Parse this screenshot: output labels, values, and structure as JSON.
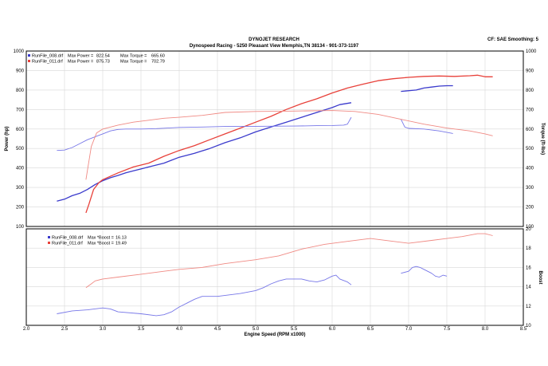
{
  "header": {
    "title": "DYNOJET RESEARCH",
    "subtitle": "Dynospeed  Racing - 5250 Pleasant View Memphis,TN 38134 - 901-373-1197",
    "cf_note": "CF: SAE  Smoothing: 5"
  },
  "chart_data": [
    {
      "type": "line",
      "panel": "power-torque",
      "xlabel": "Engine Speed (RPM x1000)",
      "ylabel_left": "Power (hp)",
      "ylabel_right": "Torque (ft-lbs)",
      "xlim": [
        2.0,
        8.5
      ],
      "ylim": [
        100,
        1000
      ],
      "y_ticks": [
        100,
        200,
        300,
        400,
        500,
        600,
        700,
        800,
        900,
        1000
      ],
      "x_ticks": [
        "2.0",
        "2.5",
        "3.0",
        "3.5",
        "4.0",
        "4.5",
        "5.0",
        "5.5",
        "6.0",
        "6.5",
        "7.0",
        "7.5",
        "8.0",
        "8.5"
      ],
      "grid": true,
      "legend_position": "top-left",
      "legend": [
        {
          "file": "RunFile_008.drf",
          "max_power_label": "Max Power =",
          "max_power": "822.54",
          "max_torque_label": "Max Torque =",
          "max_torque": "665.60",
          "color": "#3a3acc"
        },
        {
          "file": "RunFile_011.drf",
          "max_power_label": "Max Power =",
          "max_power": "875.73",
          "max_torque_label": "Max Torque =",
          "max_torque": "702.79",
          "color": "#e8413a"
        }
      ],
      "series": [
        {
          "role": "RunFile_008 power",
          "color": "#3a3acc",
          "width": 1.3,
          "points": [
            [
              2.4,
              230
            ],
            [
              2.5,
              240
            ],
            [
              2.6,
              258
            ],
            [
              2.7,
              270
            ],
            [
              2.8,
              290
            ],
            [
              2.9,
              315
            ],
            [
              3.0,
              335
            ],
            [
              3.1,
              350
            ],
            [
              3.2,
              362
            ],
            [
              3.3,
              375
            ],
            [
              3.4,
              385
            ],
            [
              3.5,
              395
            ],
            [
              3.6,
              405
            ],
            [
              3.7,
              415
            ],
            [
              3.8,
              425
            ],
            [
              3.9,
              440
            ],
            [
              4.0,
              455
            ],
            [
              4.2,
              475
            ],
            [
              4.4,
              500
            ],
            [
              4.6,
              530
            ],
            [
              4.8,
              555
            ],
            [
              5.0,
              585
            ],
            [
              5.2,
              610
            ],
            [
              5.4,
              635
            ],
            [
              5.6,
              660
            ],
            [
              5.8,
              685
            ],
            [
              6.0,
              710
            ],
            [
              6.1,
              725
            ],
            [
              6.25,
              735
            ]
          ]
        },
        {
          "role": "RunFile_008 power",
          "color": "#3a3acc",
          "width": 1.3,
          "points": [
            [
              6.9,
              793
            ],
            [
              7.1,
              800
            ],
            [
              7.2,
              810
            ],
            [
              7.3,
              815
            ],
            [
              7.4,
              820
            ],
            [
              7.5,
              822
            ],
            [
              7.58,
              822
            ]
          ]
        },
        {
          "role": "RunFile_011 power",
          "color": "#e8413a",
          "width": 1.3,
          "points": [
            [
              2.78,
              170
            ],
            [
              2.82,
              215
            ],
            [
              2.88,
              290
            ],
            [
              2.95,
              325
            ],
            [
              3.0,
              340
            ],
            [
              3.2,
              375
            ],
            [
              3.4,
              405
            ],
            [
              3.6,
              425
            ],
            [
              3.8,
              460
            ],
            [
              4.0,
              490
            ],
            [
              4.2,
              515
            ],
            [
              4.4,
              545
            ],
            [
              4.6,
              575
            ],
            [
              4.8,
              605
            ],
            [
              5.0,
              635
            ],
            [
              5.2,
              665
            ],
            [
              5.4,
              700
            ],
            [
              5.6,
              730
            ],
            [
              5.8,
              755
            ],
            [
              6.0,
              785
            ],
            [
              6.2,
              810
            ],
            [
              6.4,
              830
            ],
            [
              6.6,
              848
            ],
            [
              6.8,
              858
            ],
            [
              7.0,
              865
            ],
            [
              7.2,
              870
            ],
            [
              7.4,
              872
            ],
            [
              7.6,
              870
            ],
            [
              7.8,
              873
            ],
            [
              7.9,
              876
            ],
            [
              8.0,
              868
            ],
            [
              8.1,
              868
            ]
          ]
        },
        {
          "role": "RunFile_008 torque",
          "color": "#7777e8",
          "width": 0.9,
          "points": [
            [
              2.4,
              490
            ],
            [
              2.5,
              492
            ],
            [
              2.6,
              505
            ],
            [
              2.7,
              525
            ],
            [
              2.8,
              545
            ],
            [
              2.9,
              560
            ],
            [
              3.0,
              575
            ],
            [
              3.1,
              590
            ],
            [
              3.2,
              598
            ],
            [
              3.3,
              600
            ],
            [
              3.5,
              600
            ],
            [
              3.7,
              602
            ],
            [
              4.0,
              608
            ],
            [
              4.3,
              610
            ],
            [
              4.6,
              613
            ],
            [
              5.0,
              614
            ],
            [
              5.5,
              615
            ],
            [
              5.8,
              617
            ],
            [
              6.0,
              618
            ],
            [
              6.15,
              620
            ],
            [
              6.2,
              625
            ],
            [
              6.25,
              660
            ]
          ]
        },
        {
          "role": "RunFile_008 torque",
          "color": "#7777e8",
          "width": 0.9,
          "points": [
            [
              6.9,
              650
            ],
            [
              6.95,
              610
            ],
            [
              7.0,
              603
            ],
            [
              7.2,
              600
            ],
            [
              7.4,
              590
            ],
            [
              7.58,
              577
            ]
          ]
        },
        {
          "role": "RunFile_011 torque",
          "color": "#f08a84",
          "width": 0.9,
          "points": [
            [
              2.78,
              340
            ],
            [
              2.85,
              510
            ],
            [
              2.92,
              580
            ],
            [
              3.0,
              600
            ],
            [
              3.2,
              620
            ],
            [
              3.4,
              635
            ],
            [
              3.6,
              645
            ],
            [
              3.8,
              655
            ],
            [
              4.0,
              660
            ],
            [
              4.3,
              670
            ],
            [
              4.6,
              685
            ],
            [
              5.0,
              690
            ],
            [
              5.5,
              692
            ],
            [
              6.0,
              695
            ],
            [
              6.3,
              690
            ],
            [
              6.6,
              675
            ],
            [
              6.9,
              650
            ],
            [
              7.2,
              625
            ],
            [
              7.5,
              605
            ],
            [
              7.8,
              590
            ],
            [
              8.0,
              575
            ],
            [
              8.1,
              565
            ]
          ]
        }
      ]
    },
    {
      "type": "line",
      "panel": "boost",
      "ylabel_right": "Boost",
      "xlim": [
        2.0,
        8.5
      ],
      "ylim": [
        10,
        20
      ],
      "y_ticks": [
        10,
        12,
        14,
        16,
        18,
        20
      ],
      "grid": true,
      "legend_position": "top-left",
      "legend": [
        {
          "file": "RunFile_008.drf",
          "max_label": "Max  *Boost =",
          "max": "16.13",
          "color": "#3a3acc"
        },
        {
          "file": "RunFile_011.drf",
          "max_label": "Max  *Boost =",
          "max": "19.49",
          "color": "#e8413a"
        }
      ],
      "series": [
        {
          "role": "RunFile_008 boost",
          "color": "#7777e8",
          "width": 0.9,
          "points": [
            [
              2.4,
              11.2
            ],
            [
              2.6,
              11.5
            ],
            [
              2.8,
              11.6
            ],
            [
              3.0,
              11.8
            ],
            [
              3.1,
              11.7
            ],
            [
              3.2,
              11.4
            ],
            [
              3.5,
              11.2
            ],
            [
              3.7,
              11.0
            ],
            [
              3.8,
              11.1
            ],
            [
              3.9,
              11.4
            ],
            [
              4.0,
              11.9
            ],
            [
              4.1,
              12.3
            ],
            [
              4.2,
              12.7
            ],
            [
              4.3,
              13.0
            ],
            [
              4.5,
              13.0
            ],
            [
              4.8,
              13.3
            ],
            [
              5.0,
              13.6
            ],
            [
              5.1,
              13.9
            ],
            [
              5.2,
              14.3
            ],
            [
              5.3,
              14.6
            ],
            [
              5.4,
              14.8
            ],
            [
              5.6,
              14.8
            ],
            [
              5.7,
              14.6
            ],
            [
              5.8,
              14.5
            ],
            [
              5.9,
              14.7
            ],
            [
              6.0,
              15.1
            ],
            [
              6.05,
              15.2
            ],
            [
              6.1,
              14.8
            ],
            [
              6.2,
              14.5
            ],
            [
              6.25,
              14.2
            ]
          ]
        },
        {
          "role": "RunFile_008 boost",
          "color": "#7777e8",
          "width": 0.9,
          "points": [
            [
              6.9,
              15.4
            ],
            [
              7.0,
              15.6
            ],
            [
              7.05,
              16.0
            ],
            [
              7.1,
              16.1
            ],
            [
              7.15,
              16.0
            ],
            [
              7.2,
              15.8
            ],
            [
              7.3,
              15.4
            ],
            [
              7.35,
              15.1
            ],
            [
              7.4,
              15.0
            ],
            [
              7.45,
              15.2
            ],
            [
              7.5,
              15.1
            ]
          ]
        },
        {
          "role": "RunFile_011 boost",
          "color": "#f08a84",
          "width": 0.9,
          "points": [
            [
              2.78,
              13.9
            ],
            [
              2.85,
              14.3
            ],
            [
              2.9,
              14.6
            ],
            [
              3.0,
              14.8
            ],
            [
              3.2,
              15.0
            ],
            [
              3.5,
              15.3
            ],
            [
              3.8,
              15.6
            ],
            [
              4.0,
              15.8
            ],
            [
              4.3,
              16.0
            ],
            [
              4.6,
              16.4
            ],
            [
              5.0,
              16.8
            ],
            [
              5.3,
              17.2
            ],
            [
              5.6,
              17.9
            ],
            [
              5.9,
              18.4
            ],
            [
              6.2,
              18.7
            ],
            [
              6.5,
              19.0
            ],
            [
              6.8,
              18.7
            ],
            [
              7.0,
              18.5
            ],
            [
              7.3,
              18.8
            ],
            [
              7.5,
              19.0
            ],
            [
              7.7,
              19.2
            ],
            [
              7.9,
              19.5
            ],
            [
              8.0,
              19.5
            ],
            [
              8.1,
              19.3
            ]
          ]
        }
      ]
    }
  ]
}
